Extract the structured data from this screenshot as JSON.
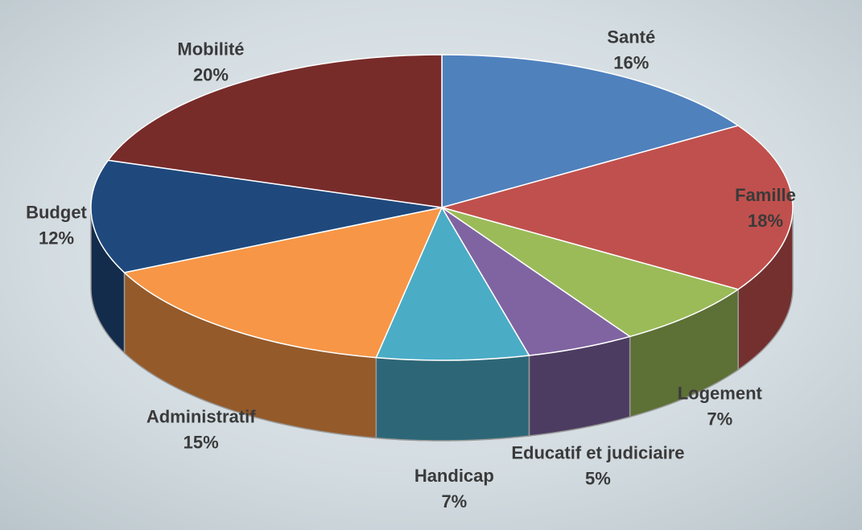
{
  "chart_data": {
    "type": "pie3d",
    "categories": [
      "Santé",
      "Famille",
      "Logement",
      "Educatif et judiciaire",
      "Handicap",
      "Administratif",
      "Budget",
      "Mobilité"
    ],
    "values": [
      16,
      18,
      7,
      5,
      7,
      15,
      12,
      20
    ],
    "value_labels": [
      "16%",
      "18%",
      "7%",
      "5%",
      "7%",
      "15%",
      "12%",
      "20%"
    ],
    "colors": [
      "#4f81bd",
      "#c0504d",
      "#9bbb59",
      "#8064a2",
      "#4bacc6",
      "#f79646",
      "#1f497d",
      "#772c2a"
    ]
  }
}
